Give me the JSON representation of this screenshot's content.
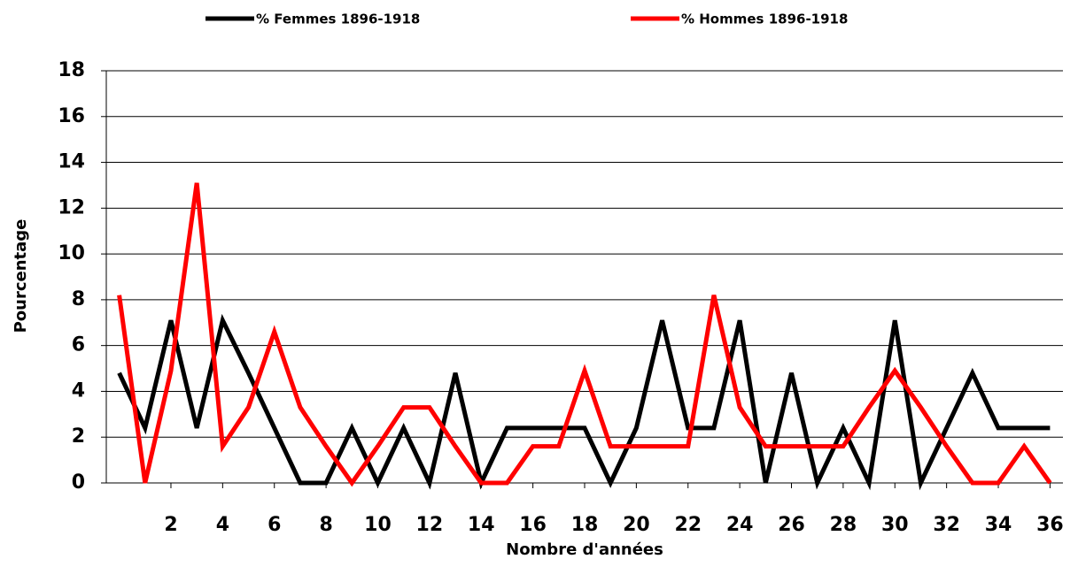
{
  "chart_data": {
    "type": "line",
    "x_label": "Nombre d'années",
    "y_label": "Pourcentage",
    "x": [
      0,
      1,
      2,
      3,
      4,
      5,
      6,
      7,
      8,
      9,
      10,
      11,
      12,
      13,
      14,
      15,
      16,
      17,
      18,
      19,
      20,
      21,
      22,
      23,
      24,
      25,
      26,
      27,
      28,
      29,
      30,
      31,
      32,
      33,
      34,
      35,
      36
    ],
    "xlim": [
      -0.5,
      36.5
    ],
    "xticks": [
      2,
      4,
      6,
      8,
      10,
      12,
      14,
      16,
      18,
      20,
      22,
      24,
      26,
      28,
      30,
      32,
      34,
      36
    ],
    "ylim": [
      0,
      18
    ],
    "yticks": [
      0,
      2,
      4,
      6,
      8,
      10,
      12,
      14,
      16,
      18
    ],
    "grid": true,
    "legend": "top",
    "series": [
      {
        "name": "% Femmes 1896-1918",
        "color": "#000000",
        "values": [
          4.8,
          2.4,
          7.1,
          2.4,
          7.1,
          4.8,
          2.4,
          0,
          0,
          2.4,
          0,
          2.4,
          0,
          4.8,
          0,
          2.4,
          2.4,
          2.4,
          2.4,
          0,
          2.4,
          7.1,
          2.4,
          2.4,
          7.1,
          0,
          4.8,
          0,
          2.4,
          0,
          7.1,
          0,
          2.4,
          4.8,
          2.4,
          2.4,
          2.4
        ]
      },
      {
        "name": "% Hommes 1896-1918",
        "color": "#ff0000",
        "values": [
          8.2,
          0,
          4.9,
          13.1,
          1.6,
          3.3,
          6.6,
          3.3,
          1.6,
          0,
          1.6,
          3.3,
          3.3,
          1.6,
          0,
          0,
          1.6,
          1.6,
          4.9,
          1.6,
          1.6,
          1.6,
          1.6,
          8.2,
          3.3,
          1.6,
          1.6,
          1.6,
          1.6,
          3.3,
          4.9,
          3.3,
          1.6,
          0,
          0,
          1.6,
          0
        ]
      }
    ]
  }
}
